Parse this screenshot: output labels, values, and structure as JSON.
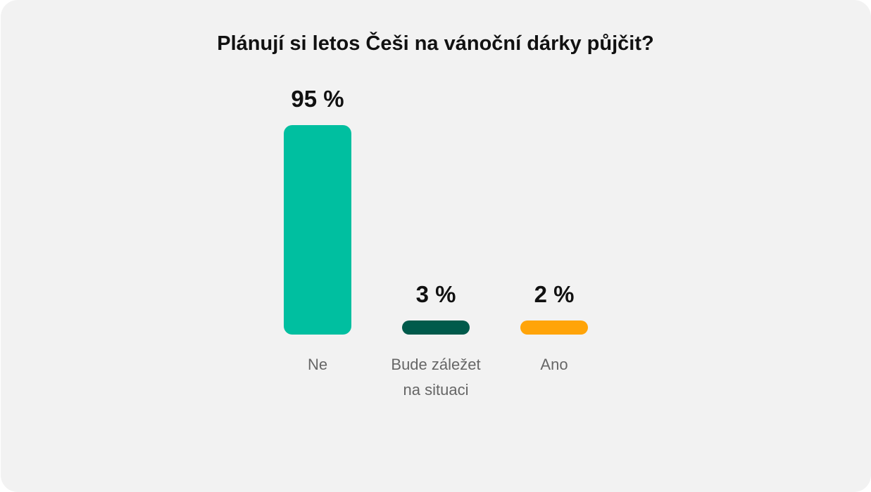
{
  "chart_data": {
    "type": "bar",
    "title": "Plánují si letos Češi na vánoční dárky půjčit?",
    "categories": [
      [
        "Ne"
      ],
      [
        "Bude záležet",
        "na situaci"
      ],
      [
        "Ano"
      ]
    ],
    "values": [
      95,
      3,
      2
    ],
    "value_labels": [
      "95 %",
      "3 %",
      "2 %"
    ],
    "colors": [
      "#00bfa0",
      "#005a4b",
      "#ffa409"
    ],
    "ylim": [
      0,
      95
    ],
    "grid": false
  }
}
